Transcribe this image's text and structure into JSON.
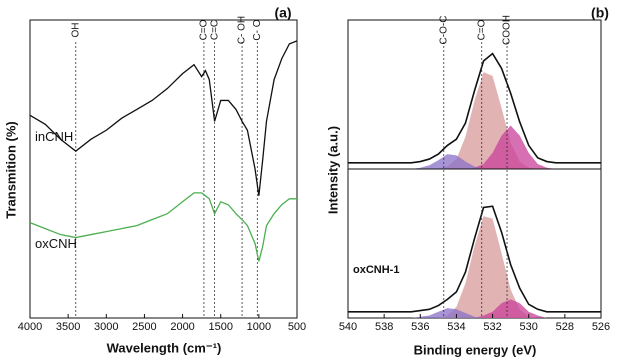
{
  "chart_data": [
    {
      "type": "line",
      "panel_label": "(a)",
      "xlabel": "Wavelength (cm⁻¹)",
      "ylabel": "Transmition (%)",
      "xlim": [
        4000,
        500
      ],
      "xticks": [
        4000,
        3500,
        3000,
        2500,
        2000,
        1500,
        1000,
        500
      ],
      "ylim": [
        0,
        100
      ],
      "annotations": [
        {
          "label": "OH",
          "x": 3400
        },
        {
          "label": "C=O",
          "x": 1720
        },
        {
          "label": "C=C",
          "x": 1580
        },
        {
          "label": "C- OH",
          "x": 1220
        },
        {
          "label": "C- O",
          "x": 1020
        }
      ],
      "x": [
        4000,
        3800,
        3600,
        3400,
        3200,
        3000,
        2800,
        2600,
        2400,
        2200,
        2000,
        1850,
        1750,
        1700,
        1650,
        1580,
        1500,
        1400,
        1300,
        1220,
        1150,
        1050,
        1000,
        950,
        900,
        800,
        700,
        600,
        500
      ],
      "series": [
        {
          "name": "inCNH",
          "color": "#111111",
          "values": [
            68,
            65,
            60,
            56,
            60,
            63,
            67,
            70,
            73,
            77,
            82,
            85,
            81,
            83,
            80,
            66,
            73,
            73,
            70,
            66,
            63,
            50,
            41,
            53,
            66,
            80,
            87,
            92,
            93
          ]
        },
        {
          "name": "oxCNH",
          "color": "#4caf50",
          "values": [
            32,
            30,
            28,
            27,
            28,
            29,
            30,
            31,
            33,
            35,
            39,
            42,
            42,
            41,
            40,
            35,
            39,
            38,
            35,
            33,
            31,
            25,
            19,
            24,
            31,
            35,
            38,
            40,
            40
          ]
        }
      ]
    },
    {
      "type": "area",
      "panel_label": "(b)",
      "xlabel": "Binding energy (eV)",
      "ylabel": "Intensity (a.u.)",
      "xlim": [
        540,
        526
      ],
      "xticks": [
        540,
        538,
        536,
        534,
        532,
        530,
        528,
        526
      ],
      "annotations": [
        {
          "label": "C-O-C",
          "x": 534.7
        },
        {
          "label": "C=O",
          "x": 532.6
        },
        {
          "label": "COOH",
          "x": 531.2
        }
      ],
      "x": [
        540,
        539.5,
        539,
        538.5,
        538,
        537.5,
        537,
        536.5,
        536,
        535.5,
        535,
        534.5,
        534,
        533.5,
        533,
        532.5,
        532,
        531.5,
        531,
        530.5,
        530,
        529.5,
        529,
        528.5,
        528,
        527.5,
        527,
        526.5,
        526
      ],
      "panels": [
        {
          "ylim": [
            0,
            120
          ],
          "series": [
            {
              "color": "#d89a9a",
              "fill": true,
              "values": [
                0,
                0,
                0,
                0,
                0,
                0,
                0,
                0,
                0,
                0,
                0,
                2,
                8,
                26,
                55,
                78,
                75,
                49,
                21,
                6,
                1,
                0,
                0,
                0,
                0,
                0,
                0,
                0,
                0
              ]
            },
            {
              "color": "#c8409a",
              "fill": true,
              "values": [
                0,
                0,
                0,
                0,
                0,
                0,
                0,
                0,
                0,
                0,
                0,
                0,
                0,
                0,
                1,
                4,
                13,
                27,
                35,
                27,
                13,
                4,
                1,
                0,
                0,
                0,
                0,
                0,
                0
              ]
            },
            {
              "color": "#8a70c8",
              "fill": true,
              "values": [
                0,
                0,
                0,
                0,
                0,
                0,
                0,
                0,
                1,
                3,
                7,
                12,
                11,
                6,
                2,
                0,
                0,
                0,
                0,
                0,
                0,
                0,
                0,
                0,
                0,
                0,
                0,
                0,
                0
              ]
            },
            {
              "color": "#111111",
              "fill": false,
              "values": [
                5,
                5,
                5,
                5,
                5,
                5,
                5,
                5,
                6,
                8,
                12,
                19,
                24,
                37,
                63,
                87,
                93,
                81,
                61,
                38,
                19,
                9,
                6,
                5,
                5,
                5,
                5,
                5,
                5
              ]
            }
          ]
        },
        {
          "label": "oxCNH-1",
          "ylim": [
            0,
            120
          ],
          "series": [
            {
              "color": "#d89a9a",
              "fill": true,
              "values": [
                0,
                0,
                0,
                0,
                0,
                0,
                0,
                0,
                0,
                0,
                0,
                2,
                9,
                28,
                58,
                82,
                80,
                52,
                23,
                7,
                1,
                0,
                0,
                0,
                0,
                0,
                0,
                0,
                0
              ]
            },
            {
              "color": "#c8409a",
              "fill": true,
              "values": [
                0,
                0,
                0,
                0,
                0,
                0,
                0,
                0,
                0,
                0,
                0,
                0,
                0,
                0,
                0,
                2,
                5,
                12,
                15,
                12,
                5,
                2,
                0,
                0,
                0,
                0,
                0,
                0,
                0
              ]
            },
            {
              "color": "#8a70c8",
              "fill": true,
              "values": [
                0,
                0,
                0,
                0,
                0,
                0,
                0,
                0,
                1,
                2,
                5,
                8,
                7,
                4,
                1,
                0,
                0,
                0,
                0,
                0,
                0,
                0,
                0,
                0,
                0,
                0,
                0,
                0,
                0
              ]
            },
            {
              "color": "#111111",
              "fill": false,
              "values": [
                5,
                5,
                5,
                5,
                5,
                5,
                5,
                5,
                6,
                7,
                10,
                15,
                21,
                37,
                64,
                89,
                90,
                69,
                43,
                24,
                11,
                7,
                5,
                5,
                5,
                5,
                5,
                5,
                5
              ]
            }
          ]
        }
      ]
    }
  ]
}
